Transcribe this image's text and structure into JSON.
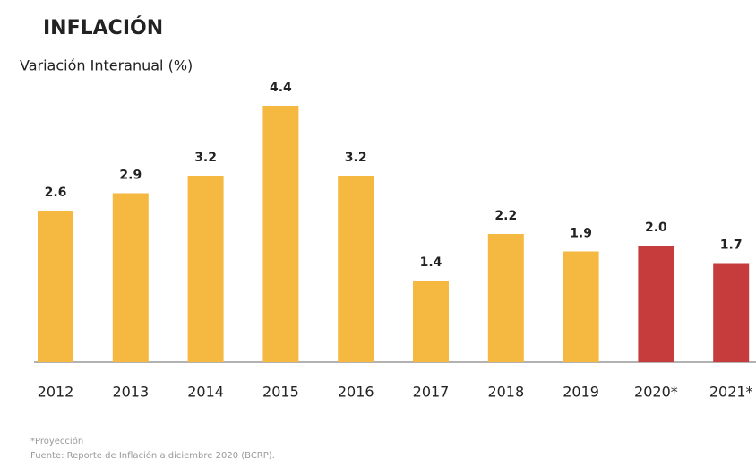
{
  "chart_data": {
    "type": "bar",
    "title": "INFLACIÓN",
    "subtitle": "Variación Interanual (%)",
    "categories": [
      "2012",
      "2013",
      "2014",
      "2015",
      "2016",
      "2017",
      "2018",
      "2019",
      "2020*",
      "2021*"
    ],
    "values": [
      2.6,
      2.9,
      3.2,
      4.4,
      3.2,
      1.4,
      2.2,
      1.9,
      2.0,
      1.7
    ],
    "value_labels": [
      "2.6",
      "2.9",
      "3.2",
      "4.4",
      "3.2",
      "1.4",
      "2.2",
      "1.9",
      "2.0",
      "1.7"
    ],
    "colors": [
      "#f5b942",
      "#f5b942",
      "#f5b942",
      "#f5b942",
      "#f5b942",
      "#f5b942",
      "#f5b942",
      "#f5b942",
      "#c63c3c",
      "#c63c3c"
    ],
    "notes": [
      "*Proyección",
      "Fuente: Reporte de Inflación a diciembre 2020 (BCRP)."
    ]
  }
}
